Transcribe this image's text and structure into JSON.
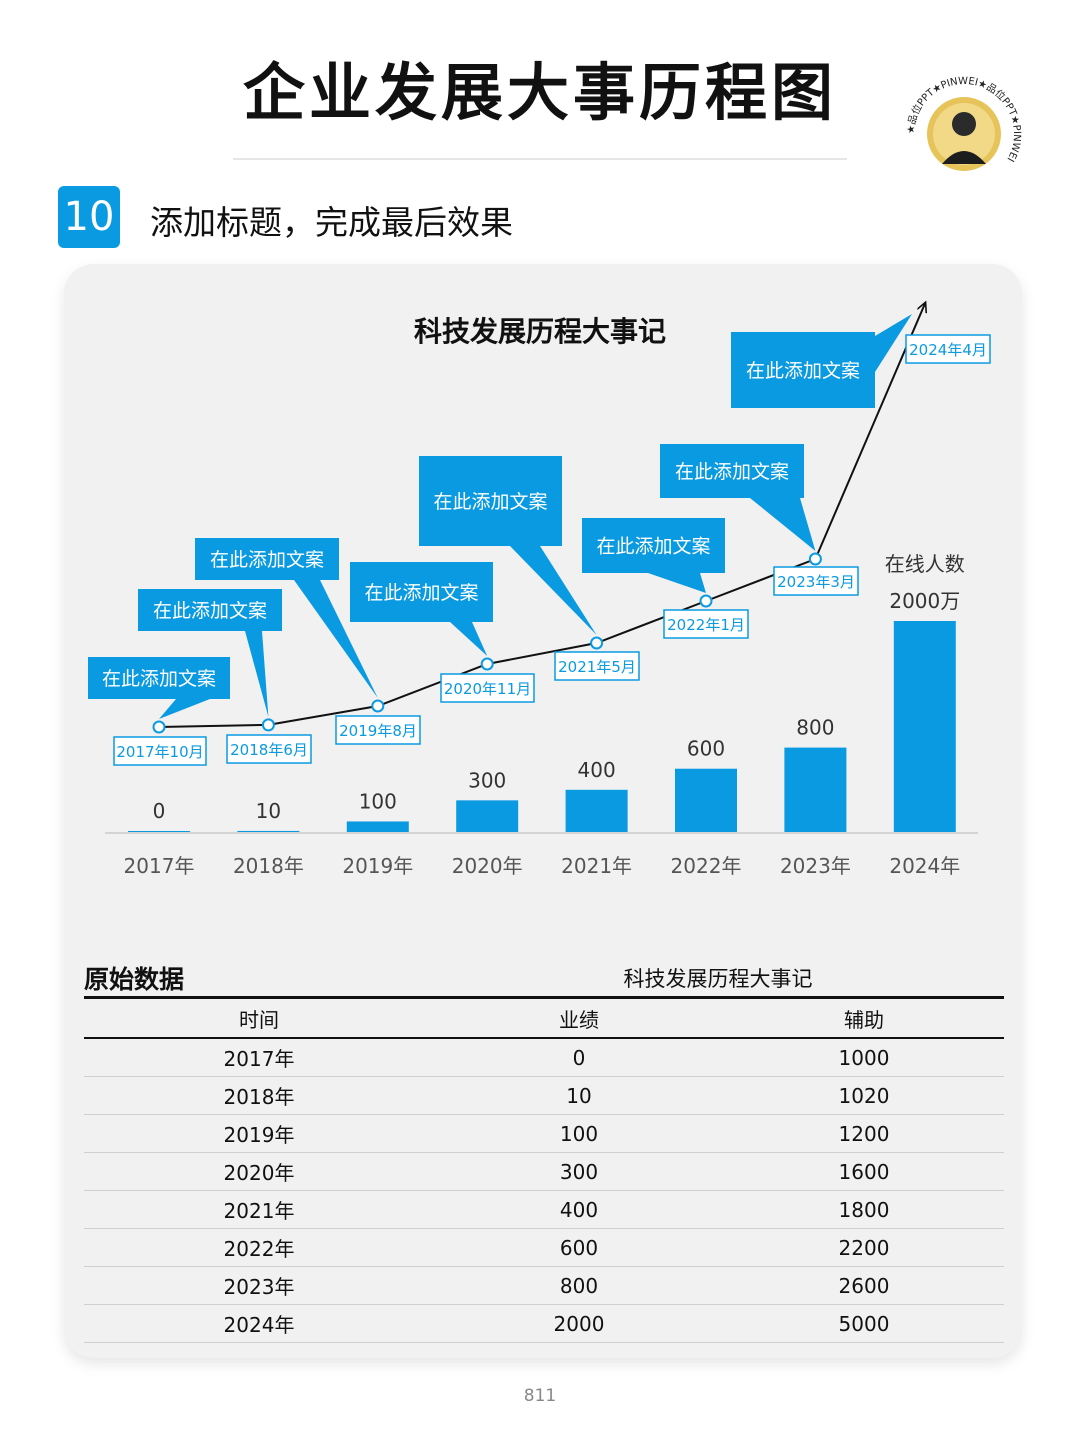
{
  "header": {
    "title": "企业发展大事历程图",
    "step_number": "10",
    "step_text": "添加标题，完成最后效果"
  },
  "logo": {
    "ring_text": "★品位PPT★PINWEI★品位PPT★PINWEI"
  },
  "chart_data": {
    "type": "bar",
    "title": "科技发展历程大事记",
    "categories": [
      "2017年",
      "2018年",
      "2019年",
      "2020年",
      "2021年",
      "2022年",
      "2023年",
      "2024年"
    ],
    "values": [
      0,
      10,
      100,
      300,
      400,
      600,
      800,
      2000
    ],
    "value_labels": [
      "0",
      "10",
      "100",
      "300",
      "400",
      "600",
      "800",
      "2000万"
    ],
    "last_bar_caption": "在线人数",
    "bar_color": "#0a9ae2",
    "timeline": {
      "type": "line",
      "values": [
        1000,
        1020,
        1200,
        1600,
        1800,
        2200,
        2600,
        5000
      ],
      "date_labels": [
        "2017年10月",
        "2018年6月",
        "2019年8月",
        "2020年11月",
        "2021年5月",
        "2022年1月",
        "2023年3月",
        "2024年4月"
      ],
      "callout_text": "在此添加文案"
    },
    "grid": false,
    "legend": "none"
  },
  "table": {
    "heading": "原始数据",
    "subtitle": "科技发展历程大事记",
    "columns": [
      "时间",
      "业绩",
      "辅助"
    ],
    "rows": [
      [
        "2017年",
        "0",
        "1000"
      ],
      [
        "2018年",
        "10",
        "1020"
      ],
      [
        "2019年",
        "100",
        "1200"
      ],
      [
        "2020年",
        "300",
        "1600"
      ],
      [
        "2021年",
        "400",
        "1800"
      ],
      [
        "2022年",
        "600",
        "2200"
      ],
      [
        "2023年",
        "800",
        "2600"
      ],
      [
        "2024年",
        "2000",
        "5000"
      ]
    ]
  },
  "footer": {
    "page_number": "811"
  }
}
